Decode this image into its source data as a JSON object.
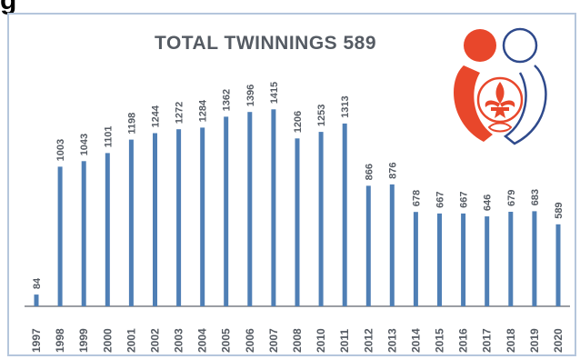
{
  "heading_fragment": "g",
  "chart_data": {
    "type": "bar",
    "title": "TOTAL TWINNINGS 589",
    "xlabel": "",
    "ylabel": "",
    "categories": [
      "1997",
      "1998",
      "1999",
      "2000",
      "2001",
      "2002",
      "2003",
      "2004",
      "2005",
      "2006",
      "2007",
      "2008",
      "2010",
      "2011",
      "2012",
      "2013",
      "2014",
      "2015",
      "2016",
      "2017",
      "2018",
      "2019",
      "2020"
    ],
    "values": [
      84,
      1003,
      1043,
      1101,
      1198,
      1244,
      1272,
      1284,
      1362,
      1396,
      1415,
      1206,
      1253,
      1313,
      866,
      876,
      678,
      667,
      667,
      646,
      679,
      683,
      589
    ],
    "ylim": [
      0,
      1600
    ],
    "grid": false,
    "legend": "none",
    "bar_color": "#4f7fb5",
    "axis_color": "#7a7f86",
    "label_color": "#555b63"
  },
  "logo": {
    "name": "scout-fleur-de-lis-logo",
    "colors": {
      "red": "#e8472b",
      "blue": "#2f4a8c",
      "white": "#ffffff"
    }
  }
}
